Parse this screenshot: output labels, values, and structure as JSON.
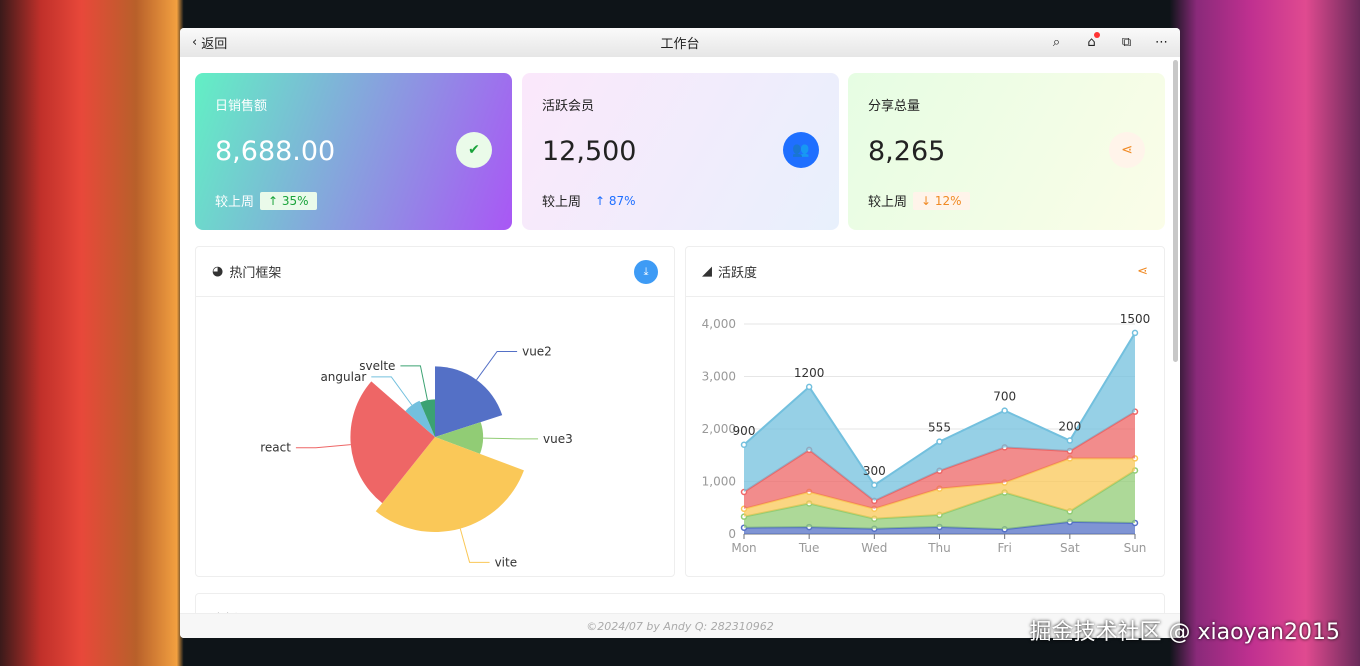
{
  "header": {
    "back": "返回",
    "title": "工作台",
    "icons": [
      "search-icon",
      "home-icon",
      "external-link-icon",
      "more-icon"
    ]
  },
  "cards": [
    {
      "label": "日销售额",
      "value": "8,688.00",
      "compare": "较上周",
      "change": "35%",
      "direction": "up",
      "icon": "wechat-icon",
      "color": "#19a33a"
    },
    {
      "label": "活跃会员",
      "value": "12,500",
      "compare": "较上周",
      "change": "87%",
      "direction": "up",
      "icon": "users-icon",
      "color": "#1f6fff"
    },
    {
      "label": "分享总量",
      "value": "8,265",
      "compare": "较上周",
      "change": "12%",
      "direction": "down",
      "icon": "share-icon",
      "color": "#f08a24"
    }
  ],
  "panels": {
    "pie": {
      "title": "热门框架",
      "action_icon": "download-icon"
    },
    "area": {
      "title": "活跃度",
      "action_icon": "share-icon"
    },
    "third": {
      "title": "直播"
    }
  },
  "footer": "©2024/07 by Andy Q: 282310962",
  "watermark": "掘金技术社区 @ xiaoyan2015",
  "chart_data": [
    {
      "type": "pie",
      "rose": "radius",
      "categories": [
        "vue2",
        "vue3",
        "vite",
        "react",
        "angular",
        "svelte"
      ],
      "values": [
        28,
        15,
        42,
        36,
        10,
        9
      ],
      "colors": [
        "#5470c6",
        "#91cc75",
        "#fac858",
        "#ee6666",
        "#73c0de",
        "#3ba272"
      ]
    },
    {
      "type": "area",
      "stacked": true,
      "categories": [
        "Mon",
        "Tue",
        "Wed",
        "Thu",
        "Fri",
        "Sat",
        "Sun"
      ],
      "ylim": [
        0,
        4000
      ],
      "yticks": [
        "0",
        "1,000",
        "2,000",
        "3,000",
        "4,000"
      ],
      "grid": true,
      "series": [
        {
          "values": [
            120,
            132,
            101,
            134,
            90,
            230,
            210
          ],
          "color": "#5470c6"
        },
        {
          "values": [
            210,
            450,
            190,
            230,
            700,
            200,
            1000
          ],
          "color": "#91cc75"
        },
        {
          "values": [
            150,
            220,
            190,
            500,
            190,
            1010,
            230
          ],
          "color": "#fac858"
        },
        {
          "values": [
            320,
            800,
            150,
            340,
            670,
            140,
            890
          ],
          "color": "#ee6666"
        },
        {
          "values": [
            900,
            1200,
            300,
            555,
            700,
            200,
            1500
          ],
          "color": "#73c0de",
          "labels": true
        }
      ]
    }
  ]
}
